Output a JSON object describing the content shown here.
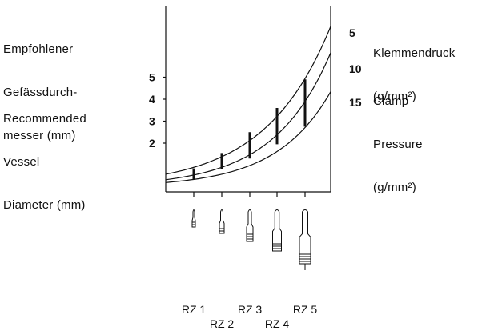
{
  "texts": {
    "de_label": [
      "Empfohlener",
      "Gefässdurch-",
      "messer (mm)"
    ],
    "en_label": [
      "Recommended",
      "Vessel",
      "Diameter (mm)"
    ],
    "de_pressure": [
      "Klemmendruck",
      "(g/mm²)"
    ],
    "en_pressure": [
      "Clamp",
      "Pressure",
      "(g/mm²)"
    ]
  },
  "chart_data": {
    "type": "line",
    "title": "",
    "xlabel": "",
    "ylabel": "Empfohlener Gefässdurchmesser (mm) / Recommended Vessel Diameter (mm)",
    "categories": [
      "RZ 1",
      "RZ 2",
      "RZ 3",
      "RZ 4",
      "RZ 5"
    ],
    "y_ticks": [
      2,
      3,
      4,
      5
    ],
    "ylim": [
      0,
      6
    ],
    "right_ticks": [
      "5",
      "10",
      "15"
    ],
    "series": [
      {
        "name": "5",
        "values": [
          0.9,
          1.6,
          2.6,
          3.7,
          5.0
        ]
      },
      {
        "name": "10",
        "values": [
          0.55,
          1.2,
          1.9,
          2.75,
          3.95
        ]
      },
      {
        "name": "15",
        "values": [
          0.35,
          0.8,
          1.3,
          1.95,
          2.75
        ]
      }
    ],
    "ranges": [
      {
        "category": "RZ 1",
        "min": 0.35,
        "max": 0.85
      },
      {
        "category": "RZ 2",
        "min": 0.8,
        "max": 1.55
      },
      {
        "category": "RZ 3",
        "min": 1.3,
        "max": 2.5
      },
      {
        "category": "RZ 4",
        "min": 1.95,
        "max": 3.6
      },
      {
        "category": "RZ 5",
        "min": 2.75,
        "max": 4.9
      }
    ]
  },
  "icons": [
    "clip-rz1-icon",
    "clip-rz2-icon",
    "clip-rz3-icon",
    "clip-rz4-icon",
    "clip-rz5-icon"
  ]
}
